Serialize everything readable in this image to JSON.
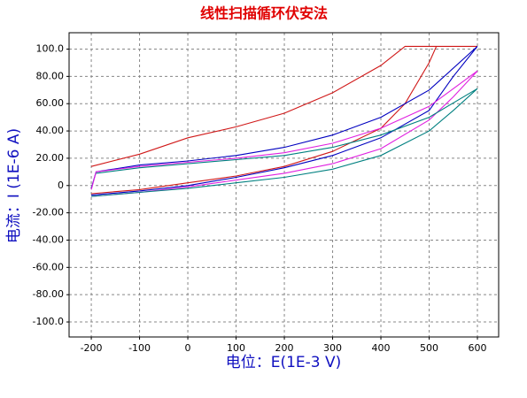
{
  "chart_data": {
    "type": "line",
    "title": "线性扫描循环伏安法",
    "xlabel": "电位：E(1E-3 V)",
    "ylabel": "电流：I (1E-6 A)",
    "xlim": [
      -246,
      644
    ],
    "ylim": [
      -111,
      112
    ],
    "xticks": [
      -200,
      -100,
      0,
      100,
      200,
      300,
      400,
      500,
      600
    ],
    "yticks": [
      {
        "value": 100,
        "label": "100.0"
      },
      {
        "value": 80,
        "label": "80.00"
      },
      {
        "value": 60,
        "label": "60.00"
      },
      {
        "value": 40,
        "label": "40.00"
      },
      {
        "value": 20,
        "label": "20.00"
      },
      0,
      {
        "value": -20,
        "label": "-20.00"
      },
      {
        "value": -40,
        "label": "-40.00"
      },
      {
        "value": -60,
        "label": "-60.00"
      },
      {
        "value": -80,
        "label": "-80.00"
      },
      {
        "value": -100,
        "label": "-100.0"
      }
    ],
    "grid": true,
    "series": [
      {
        "color": "#d01818",
        "x": [
          -200,
          -100,
          0,
          100,
          200,
          300,
          400,
          450,
          500,
          515,
          600,
          450,
          400,
          300,
          200,
          100,
          0,
          -100,
          -200
        ],
        "values": [
          -6,
          -3,
          2,
          7,
          14,
          25,
          42,
          60,
          90,
          102,
          102,
          102,
          88,
          68,
          53,
          43,
          35,
          23,
          14
        ]
      },
      {
        "color": "#0000c0",
        "x": [
          -200,
          -100,
          0,
          100,
          200,
          300,
          400,
          500,
          550,
          600,
          500,
          400,
          300,
          200,
          100,
          0,
          -100,
          -190,
          -200
        ],
        "values": [
          -7,
          -4,
          0,
          6,
          13,
          22,
          35,
          55,
          80,
          102,
          70,
          50,
          37,
          28,
          22,
          18,
          15,
          10,
          -2
        ]
      },
      {
        "color": "#e020e0",
        "x": [
          -200,
          -100,
          0,
          100,
          200,
          300,
          400,
          500,
          550,
          600,
          500,
          400,
          300,
          200,
          100,
          0,
          -100,
          -190,
          -200
        ],
        "values": [
          -8,
          -5,
          -1,
          4,
          9,
          16,
          27,
          48,
          65,
          84,
          58,
          42,
          31,
          24,
          20,
          17,
          14,
          10,
          -3
        ]
      },
      {
        "color": "#008080",
        "x": [
          -200,
          -100,
          0,
          100,
          200,
          300,
          400,
          500,
          550,
          600,
          500,
          400,
          300,
          200,
          100,
          0,
          -100,
          -190
        ],
        "values": [
          -8,
          -5,
          -2,
          2,
          6,
          12,
          22,
          40,
          55,
          71,
          50,
          37,
          28,
          22,
          19,
          16,
          13,
          9
        ]
      }
    ]
  }
}
